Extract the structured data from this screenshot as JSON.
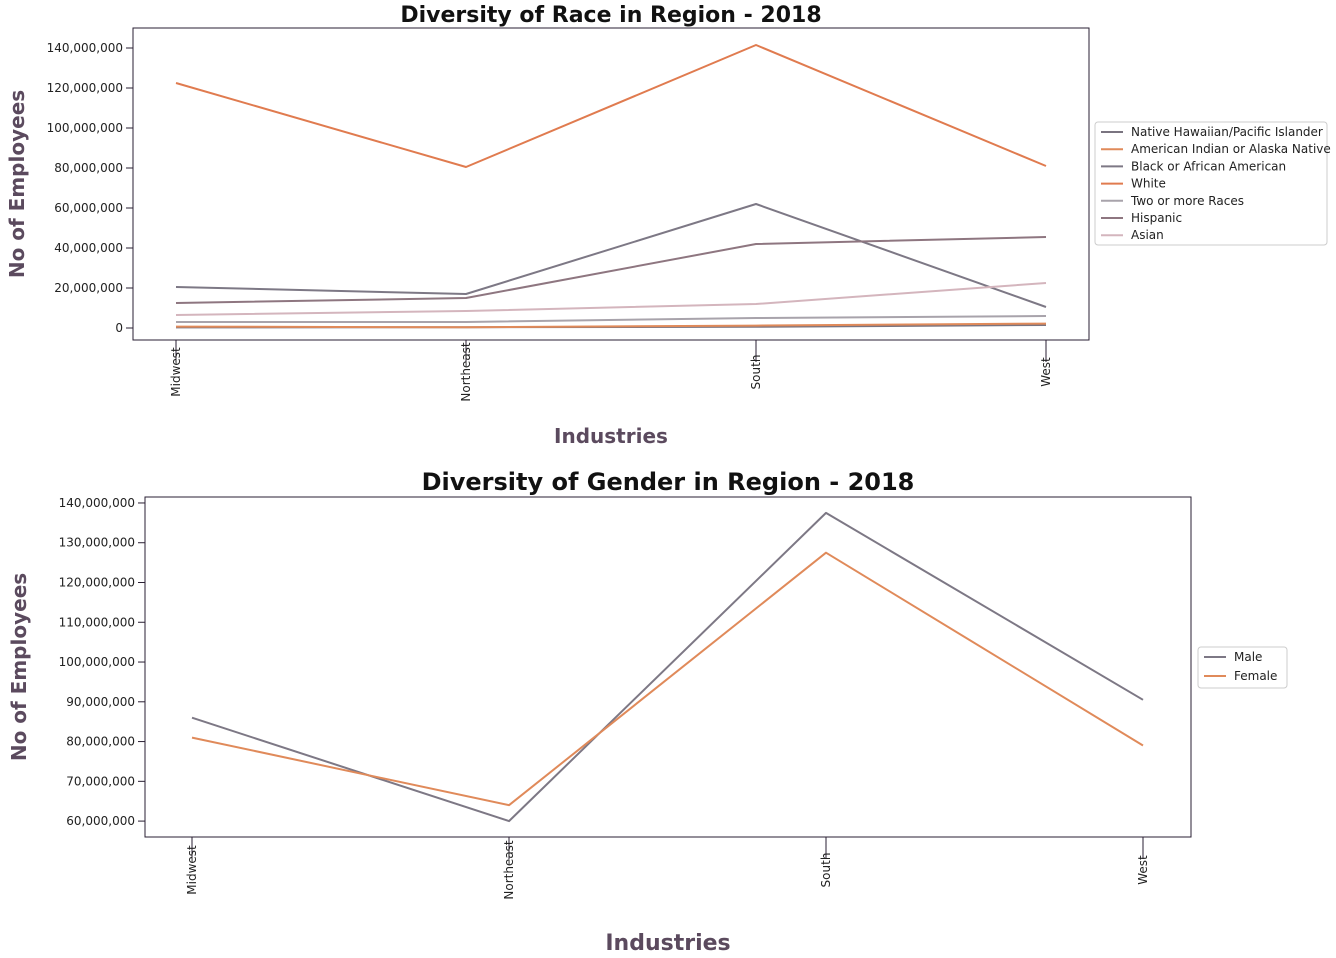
{
  "chart_data": [
    {
      "type": "line",
      "title": "Diversity of Race in Region - 2018",
      "xlabel": "Industries",
      "ylabel": "No of Employees",
      "categories": [
        "Midwest",
        "Northeast",
        "South",
        "West"
      ],
      "ylim": [
        -6000000,
        150000000
      ],
      "yticks": [
        0,
        20000000,
        40000000,
        60000000,
        80000000,
        100000000,
        120000000,
        140000000
      ],
      "ytick_labels": [
        "0",
        "20,000,000",
        "40,000,000",
        "60,000,000",
        "80,000,000",
        "100,000,000",
        "120,000,000",
        "140,000,000"
      ],
      "legend_position": "right",
      "grid": false,
      "series": [
        {
          "name": "Native Hawaiian/Pacific Islander",
          "color": "#7a7480",
          "values": [
            300000,
            400000,
            600000,
            1500000
          ]
        },
        {
          "name": "American Indian or Alaska Native",
          "color": "#e08a5a",
          "values": [
            700000,
            350000,
            1200000,
            2200000
          ]
        },
        {
          "name": "Black or African American",
          "color": "#7d7885",
          "values": [
            20500000,
            17000000,
            62000000,
            10500000
          ]
        },
        {
          "name": "White",
          "color": "#e07b4f",
          "values": [
            122500000,
            80500000,
            141500000,
            81000000
          ]
        },
        {
          "name": "Two or more Races",
          "color": "#a8a3ab",
          "values": [
            3000000,
            3000000,
            5000000,
            6000000
          ]
        },
        {
          "name": "Hispanic",
          "color": "#8e7680",
          "values": [
            12500000,
            15000000,
            42000000,
            45500000
          ]
        },
        {
          "name": "Asian",
          "color": "#d4b5bd",
          "values": [
            6500000,
            8500000,
            12000000,
            22500000
          ]
        }
      ]
    },
    {
      "type": "line",
      "title": "Diversity of Gender in Region - 2018",
      "xlabel": "Industries",
      "ylabel": "No of Employees",
      "categories": [
        "Midwest",
        "Northeast",
        "South",
        "West"
      ],
      "ylim": [
        56000000,
        141500000
      ],
      "yticks": [
        60000000,
        70000000,
        80000000,
        90000000,
        100000000,
        110000000,
        120000000,
        130000000,
        140000000
      ],
      "ytick_labels": [
        "60,000,000",
        "70,000,000",
        "80,000,000",
        "90,000,000",
        "100,000,000",
        "110,000,000",
        "120,000,000",
        "130,000,000",
        "140,000,000"
      ],
      "legend_position": "right",
      "grid": false,
      "series": [
        {
          "name": "Male",
          "color": "#7d7885",
          "values": [
            86000000,
            60000000,
            137500000,
            90500000
          ]
        },
        {
          "name": "Female",
          "color": "#e08a5a",
          "values": [
            81000000,
            64000000,
            127500000,
            79000000
          ]
        }
      ]
    }
  ]
}
